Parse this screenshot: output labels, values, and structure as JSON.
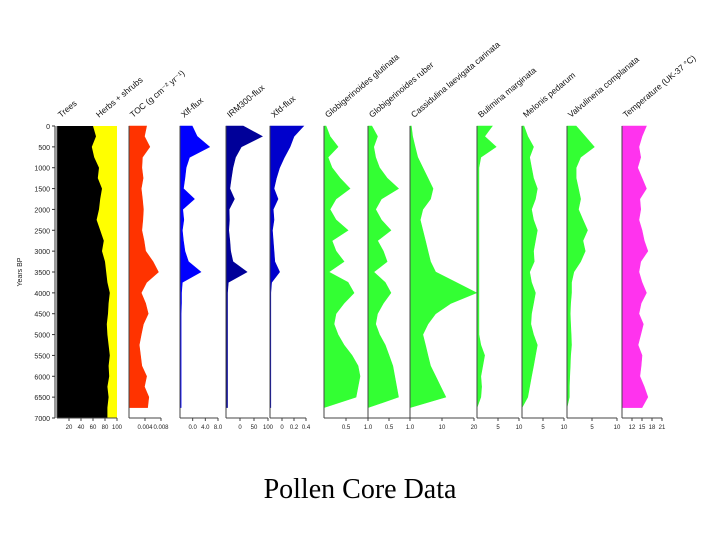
{
  "caption": "Pollen Core Data",
  "chart_data": {
    "type": "area",
    "orientation": "stratigraphic",
    "ylabel": "Years BP",
    "ylim": [
      0,
      7000
    ],
    "yticks": [
      "0",
      "500",
      "1000",
      "1500",
      "2000",
      "2500",
      "3000",
      "3500",
      "4000",
      "4500",
      "5000",
      "5500",
      "6000",
      "6500",
      "7000"
    ],
    "depth": [
      0,
      250,
      500,
      750,
      1000,
      1250,
      1500,
      1750,
      2000,
      2250,
      2500,
      2750,
      3000,
      3250,
      3500,
      3750,
      4000,
      4250,
      4500,
      4750,
      5000,
      5250,
      5500,
      5750,
      6000,
      6250,
      6500,
      6750
    ],
    "panels": [
      {
        "id": "trees-herbs",
        "labels": [
          "Trees",
          "Herbs + shrubs"
        ],
        "colors": [
          "#000000",
          "#ffff00"
        ],
        "ticks": [
          "20",
          "40",
          "60",
          "80",
          "100"
        ],
        "stacked": true,
        "values": [
          60,
          65,
          58,
          62,
          70,
          68,
          75,
          72,
          70,
          66,
          72,
          78,
          75,
          80,
          82,
          84,
          88,
          86,
          85,
          83,
          84,
          86,
          88,
          86,
          87,
          84,
          86,
          84
        ]
      },
      {
        "id": "toc",
        "labels": [
          "TOC (g cm⁻² yr⁻¹)"
        ],
        "color": "#ff3300",
        "ticks": [
          "0.004",
          "0.008"
        ],
        "xlim": [
          0,
          0.01
        ],
        "values": [
          0.0055,
          0.0048,
          0.0065,
          0.0042,
          0.004,
          0.0044,
          0.0038,
          0.0042,
          0.0045,
          0.0043,
          0.004,
          0.0047,
          0.0052,
          0.0075,
          0.0092,
          0.0055,
          0.0038,
          0.0052,
          0.006,
          0.0045,
          0.0038,
          0.0032,
          0.0036,
          0.004,
          0.0055,
          0.0048,
          0.0062,
          0.0058
        ]
      },
      {
        "id": "xlf-flux",
        "labels": [
          "Xlf-flux"
        ],
        "color": "#0000ff",
        "ticks": [
          "0.0",
          "4.0",
          "8.0"
        ],
        "xlim": [
          0,
          10
        ],
        "values": [
          3.2,
          4.5,
          7.8,
          2.5,
          1.6,
          1.3,
          0.9,
          3.8,
          0.7,
          1,
          0.6,
          0.9,
          1.3,
          2.2,
          5.5,
          0.6,
          0.4,
          0.4,
          0.3,
          0.3,
          0.3,
          0.3,
          0.3,
          0.3,
          0.3,
          0.3,
          0.3,
          0.3
        ]
      },
      {
        "id": "irm300-flux",
        "labels": [
          "IRM300-flux"
        ],
        "color": "#000099",
        "ticks": [
          "0",
          "50",
          "100"
        ],
        "xlim": [
          0,
          110
        ],
        "values": [
          45,
          95,
          40,
          25,
          18,
          14,
          10,
          22,
          8,
          9,
          7,
          10,
          12,
          18,
          55,
          6,
          4,
          4,
          4,
          4,
          4,
          4,
          4,
          4,
          4,
          4,
          4,
          4
        ]
      },
      {
        "id": "xfd-flux",
        "labels": [
          "Xfd-flux"
        ],
        "color": "#0000cc",
        "ticks": [
          "0",
          "0.2",
          "0.4"
        ],
        "xlim": [
          0,
          0.45
        ],
        "values": [
          0.42,
          0.3,
          0.25,
          0.18,
          0.12,
          0.08,
          0.05,
          0.1,
          0.04,
          0.05,
          0.03,
          0.04,
          0.05,
          0.06,
          0.12,
          0.02,
          0.01,
          0.01,
          0.01,
          0.01,
          0.01,
          0.01,
          0.01,
          0.01,
          0.01,
          0.01,
          0.01,
          0.01
        ]
      },
      {
        "id": "g-glutinata",
        "labels": [
          "Globigerinoides glutinata"
        ],
        "color": "#33ff33",
        "ticks": [
          "0.5",
          "1.0"
        ],
        "xlim": [
          0,
          1.1
        ],
        "values": [
          0.05,
          0.15,
          0.35,
          0.1,
          0.2,
          0.4,
          0.65,
          0.3,
          0.15,
          0.3,
          0.6,
          0.2,
          0.3,
          0.5,
          0.12,
          0.6,
          0.75,
          0.5,
          0.3,
          0.25,
          0.35,
          0.5,
          0.7,
          0.85,
          0.9,
          0.85,
          0.8,
          0
        ]
      },
      {
        "id": "g-ruber",
        "labels": [
          "Globigerinoides ruber"
        ],
        "color": "#33ff33",
        "ticks": [
          "0.5",
          "1.0"
        ],
        "xlim": [
          0,
          1.1
        ],
        "values": [
          0.1,
          0.25,
          0.15,
          0.2,
          0.3,
          0.5,
          0.8,
          0.35,
          0.2,
          0.35,
          0.6,
          0.25,
          0.4,
          0.5,
          0.15,
          0.45,
          0.6,
          0.4,
          0.25,
          0.2,
          0.3,
          0.45,
          0.55,
          0.65,
          0.7,
          0.75,
          0.8,
          0
        ]
      },
      {
        "id": "c-laevigata",
        "labels": [
          "Cassidulina laevigata carinata"
        ],
        "color": "#33ff33",
        "ticks": [
          "10",
          "20"
        ],
        "xlim": [
          0,
          25
        ],
        "values": [
          0.5,
          1,
          2,
          3,
          5,
          7,
          9,
          8,
          5,
          4,
          5,
          6,
          7,
          8,
          10,
          18,
          26,
          16,
          10,
          7,
          5,
          6,
          7,
          8,
          10,
          12,
          14,
          0
        ]
      },
      {
        "id": "b-marginata",
        "labels": [
          "Bulimina marginata"
        ],
        "color": "#33ff33",
        "ticks": [
          "5",
          "10"
        ],
        "xlim": [
          0,
          11
        ],
        "values": [
          4,
          2,
          5,
          1,
          0.5,
          0.5,
          0.5,
          0.5,
          0.5,
          0.5,
          0.5,
          0.5,
          0.5,
          0.5,
          0.5,
          0.5,
          0.5,
          0.5,
          0.5,
          0.5,
          0.5,
          1,
          2,
          1.5,
          1,
          1.2,
          1,
          0
        ]
      },
      {
        "id": "m-pedarum",
        "labels": [
          "Melonis pedarum"
        ],
        "color": "#33ff33",
        "ticks": [
          "5",
          "10"
        ],
        "xlim": [
          0,
          11
        ],
        "values": [
          0.5,
          1.5,
          3,
          2,
          2.5,
          3,
          4,
          3.5,
          2.5,
          3,
          4,
          3.5,
          3,
          3.2,
          2,
          2.5,
          3.5,
          3,
          2.5,
          2.3,
          3,
          4,
          3.5,
          3,
          2.5,
          2,
          1.5,
          0
        ]
      },
      {
        "id": "v-complanata",
        "labels": [
          "Valvulineria complanata"
        ],
        "color": "#33ff33",
        "ticks": [
          "5",
          "10"
        ],
        "xlim": [
          0,
          11
        ],
        "values": [
          2,
          4,
          6,
          3,
          2,
          2,
          2.5,
          3,
          2.5,
          3.5,
          4.5,
          3.5,
          4,
          3,
          1.5,
          1,
          1,
          0.8,
          0.7,
          0.8,
          0.9,
          1,
          0.8,
          0.7,
          0.6,
          0.5,
          0.5,
          0
        ]
      },
      {
        "id": "temperature",
        "labels": [
          "Temperature (UK-37 °C)"
        ],
        "color": "#ff33ee",
        "ticks": [
          "12",
          "15",
          "18",
          "21"
        ],
        "xlim": [
          12,
          21
        ],
        "values": [
          17.5,
          16.5,
          15.8,
          16.2,
          15.5,
          16.5,
          17.5,
          16,
          16.2,
          15.8,
          16.5,
          17,
          17.8,
          16.2,
          15.8,
          16.5,
          17.5,
          16.3,
          15.8,
          16.8,
          16.2,
          15.6,
          16.5,
          16.3,
          16,
          17,
          17.8,
          16.5
        ]
      }
    ]
  }
}
